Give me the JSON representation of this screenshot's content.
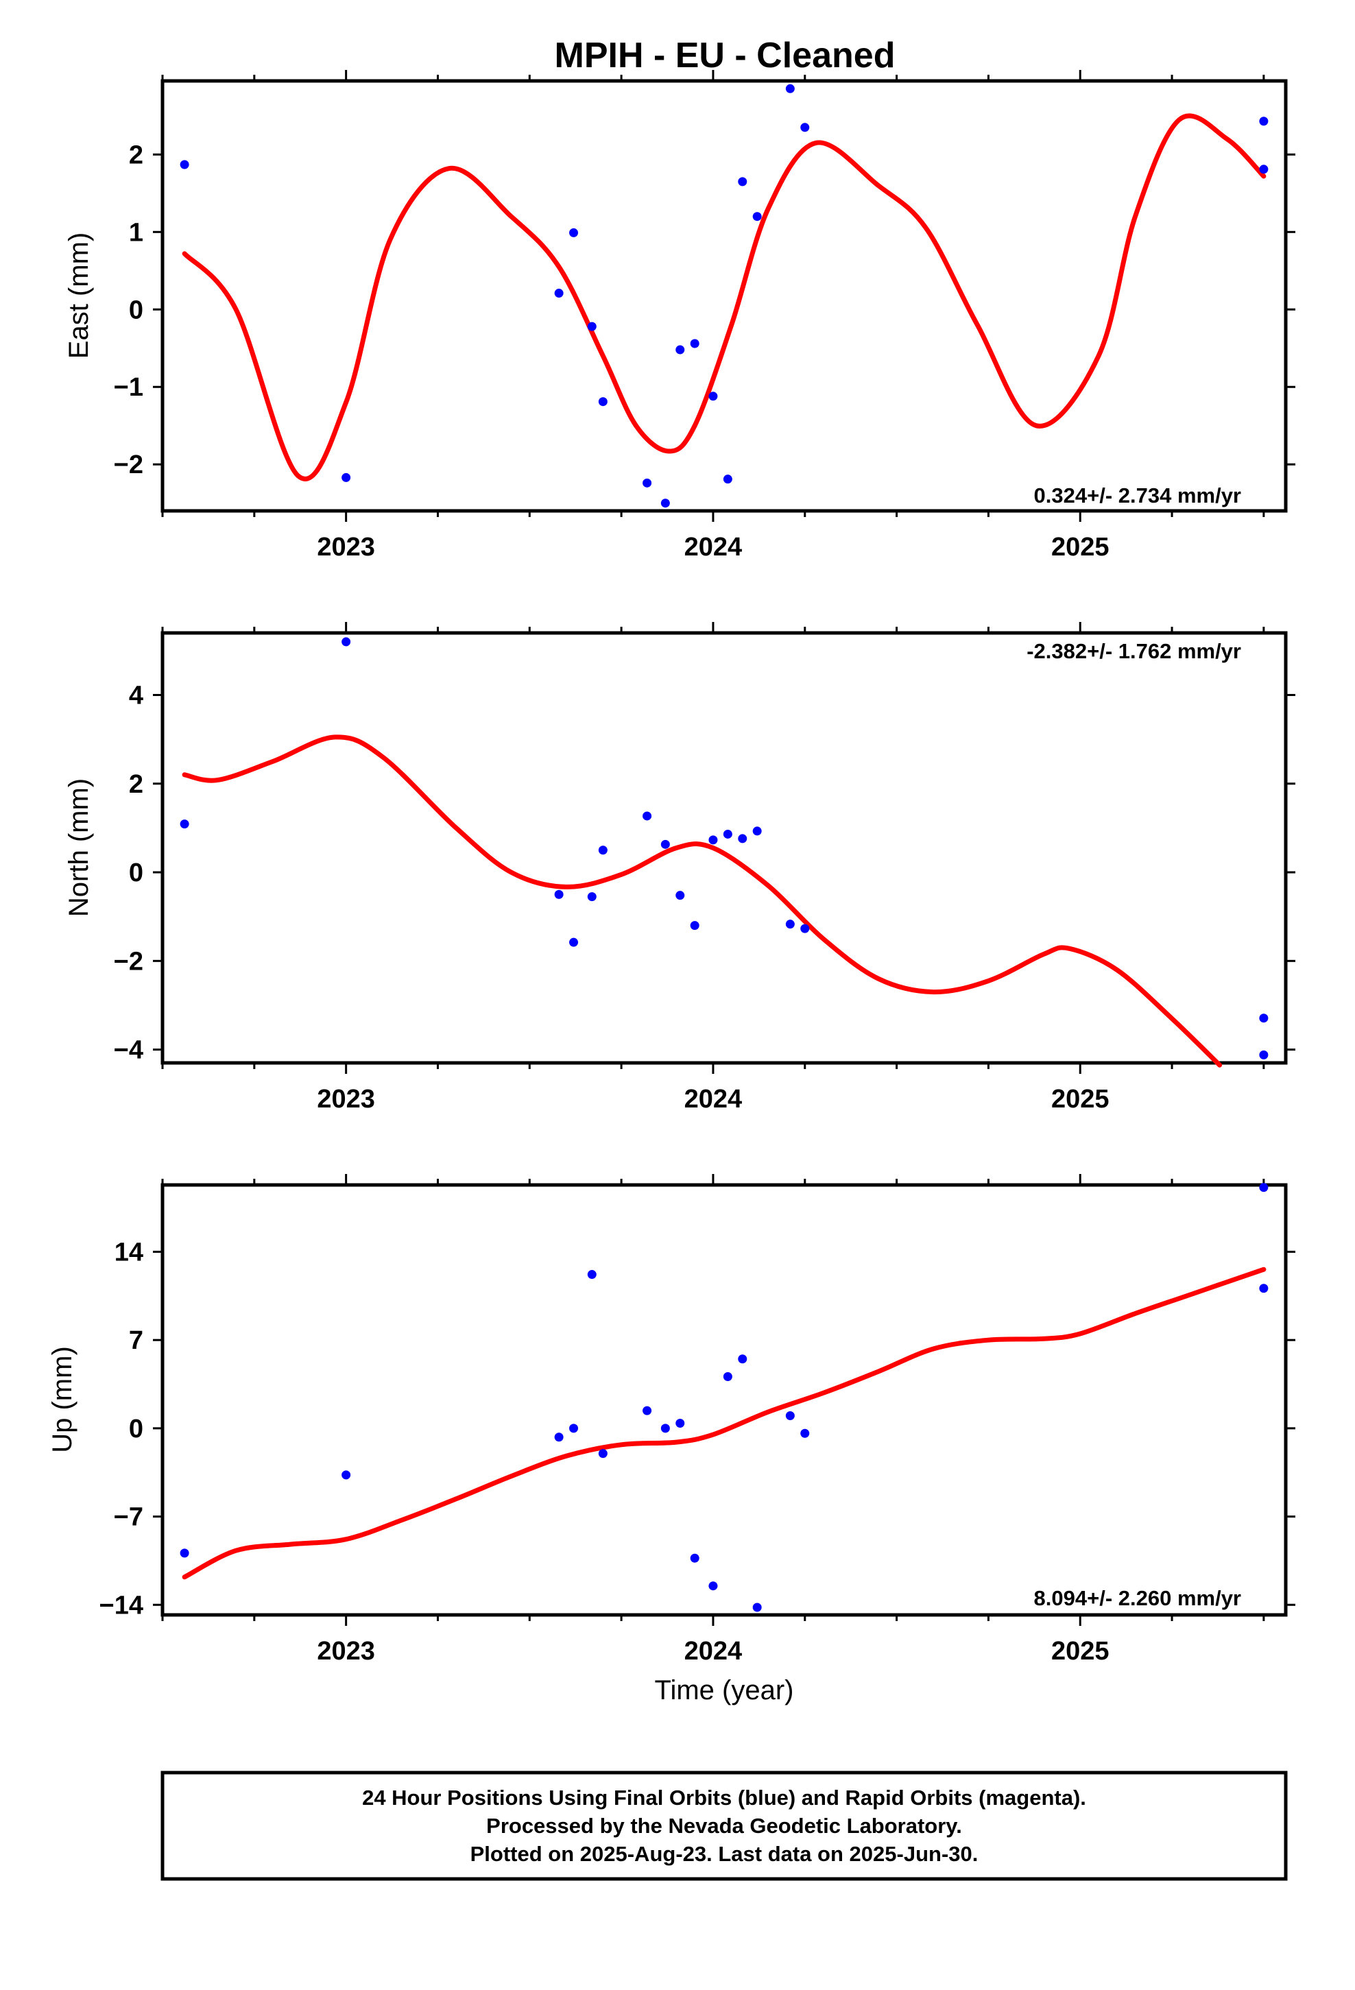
{
  "title": "MPIH  - EU - Cleaned",
  "footer": {
    "lines": [
      "24 Hour Positions Using Final Orbits (blue) and Rapid Orbits (magenta).",
      "Processed by the Nevada Geodetic Laboratory.",
      "Plotted on 2025-Aug-23. Last data on 2025-Jun-30."
    ]
  },
  "colors": {
    "points": "#0000ff",
    "fit": "#ff0000",
    "frame": "#000000"
  },
  "chart_data": [
    {
      "type": "scatter",
      "ylabel": "East (mm)",
      "xlabel": "",
      "xlim": [
        2022.5,
        2025.56
      ],
      "ylim": [
        -2.6,
        2.95
      ],
      "x_ticks": [
        2023,
        2024,
        2025
      ],
      "y_ticks": [
        -2,
        -1,
        0,
        1,
        2
      ],
      "y_tick_labels": [
        "−2",
        "−1",
        "0",
        "1",
        "2"
      ],
      "rate_label": "0.324+/- 2.734 mm/yr",
      "rate_position": "bottom-right",
      "points": {
        "x": [
          2022.56,
          2023.0,
          2023.58,
          2023.62,
          2023.67,
          2023.7,
          2023.82,
          2023.87,
          2023.91,
          2023.95,
          2024.0,
          2024.04,
          2024.08,
          2024.12,
          2024.21,
          2024.25,
          2025.5,
          2025.5
        ],
        "y": [
          1.87,
          -2.17,
          0.21,
          0.99,
          -0.22,
          -1.19,
          -2.24,
          -2.5,
          -0.52,
          -0.44,
          -1.12,
          -2.19,
          1.65,
          1.2,
          2.85,
          2.35,
          2.43,
          1.81
        ]
      },
      "fit": {
        "x": [
          2022.56,
          2022.7,
          2022.87,
          2023.0,
          2023.12,
          2023.28,
          2023.45,
          2023.58,
          2023.7,
          2023.79,
          2023.88,
          2023.95,
          2024.05,
          2024.15,
          2024.28,
          2024.45,
          2024.58,
          2024.72,
          2024.88,
          2025.05,
          2025.15,
          2025.27,
          2025.4,
          2025.5
        ],
        "y": [
          0.72,
          0.0,
          -2.15,
          -1.2,
          0.9,
          1.82,
          1.2,
          0.55,
          -0.6,
          -1.5,
          -1.83,
          -1.5,
          -0.2,
          1.3,
          2.15,
          1.6,
          1.05,
          -0.2,
          -1.5,
          -0.6,
          1.2,
          2.45,
          2.2,
          1.72
        ]
      }
    },
    {
      "type": "scatter",
      "ylabel": "North (mm)",
      "xlabel": "",
      "xlim": [
        2022.5,
        2025.56
      ],
      "ylim": [
        -4.3,
        5.4
      ],
      "x_ticks": [
        2023,
        2024,
        2025
      ],
      "y_ticks": [
        -4,
        -2,
        0,
        2,
        4
      ],
      "y_tick_labels": [
        "−4",
        "−2",
        "0",
        "2",
        "4"
      ],
      "rate_label": "-2.382+/- 1.762 mm/yr",
      "rate_position": "top-right",
      "points": {
        "x": [
          2022.56,
          2023.0,
          2023.58,
          2023.62,
          2023.67,
          2023.7,
          2023.82,
          2023.87,
          2023.91,
          2023.95,
          2024.0,
          2024.04,
          2024.08,
          2024.12,
          2024.21,
          2024.25,
          2025.5,
          2025.5
        ],
        "y": [
          1.09,
          5.2,
          -0.5,
          -1.58,
          -0.55,
          0.5,
          1.27,
          0.63,
          -0.52,
          -1.2,
          0.73,
          0.86,
          0.76,
          0.93,
          -1.17,
          -1.27,
          -3.29,
          -4.12
        ]
      },
      "fit": {
        "x": [
          2022.56,
          2022.65,
          2022.8,
          2022.97,
          2023.1,
          2023.3,
          2023.45,
          2023.6,
          2023.75,
          2023.9,
          2024.0,
          2024.15,
          2024.3,
          2024.45,
          2024.6,
          2024.75,
          2024.9,
          2024.97,
          2025.1,
          2025.25,
          2025.38
        ],
        "y": [
          2.2,
          2.08,
          2.5,
          3.05,
          2.6,
          1.0,
          0.0,
          -0.33,
          -0.05,
          0.55,
          0.55,
          -0.3,
          -1.5,
          -2.4,
          -2.7,
          -2.45,
          -1.85,
          -1.72,
          -2.2,
          -3.3,
          -4.35
        ]
      }
    },
    {
      "type": "scatter",
      "ylabel": "Up (mm)",
      "xlabel": "Time (year)",
      "xlim": [
        2022.5,
        2025.56
      ],
      "ylim": [
        -14.8,
        19.3
      ],
      "x_ticks": [
        2023,
        2024,
        2025
      ],
      "y_ticks": [
        -14,
        -7,
        0,
        7,
        14
      ],
      "y_tick_labels": [
        "−14",
        "−7",
        "0",
        "7",
        "14"
      ],
      "rate_label": "8.094+/- 2.260 mm/yr",
      "rate_position": "bottom-right",
      "points": {
        "x": [
          2022.56,
          2023.0,
          2023.58,
          2023.62,
          2023.67,
          2023.7,
          2023.82,
          2023.87,
          2023.91,
          2023.95,
          2024.0,
          2024.04,
          2024.08,
          2024.12,
          2024.21,
          2024.25,
          2025.5,
          2025.5
        ],
        "y": [
          -9.9,
          -3.7,
          -0.7,
          0.0,
          12.2,
          -2.0,
          1.4,
          0.0,
          0.4,
          -10.3,
          -12.5,
          4.1,
          5.5,
          -14.2,
          1.0,
          -0.4,
          19.1,
          11.1
        ]
      },
      "fit": {
        "x": [
          2022.56,
          2022.7,
          2022.85,
          2023.0,
          2023.15,
          2023.3,
          2023.45,
          2023.6,
          2023.75,
          2023.9,
          2024.0,
          2024.15,
          2024.3,
          2024.45,
          2024.6,
          2024.75,
          2024.9,
          2025.0,
          2025.15,
          2025.3,
          2025.5
        ],
        "y": [
          -11.8,
          -9.7,
          -9.2,
          -8.8,
          -7.3,
          -5.6,
          -3.8,
          -2.2,
          -1.3,
          -1.1,
          -0.5,
          1.3,
          2.8,
          4.5,
          6.3,
          7.0,
          7.1,
          7.5,
          9.1,
          10.6,
          12.6
        ]
      }
    }
  ]
}
